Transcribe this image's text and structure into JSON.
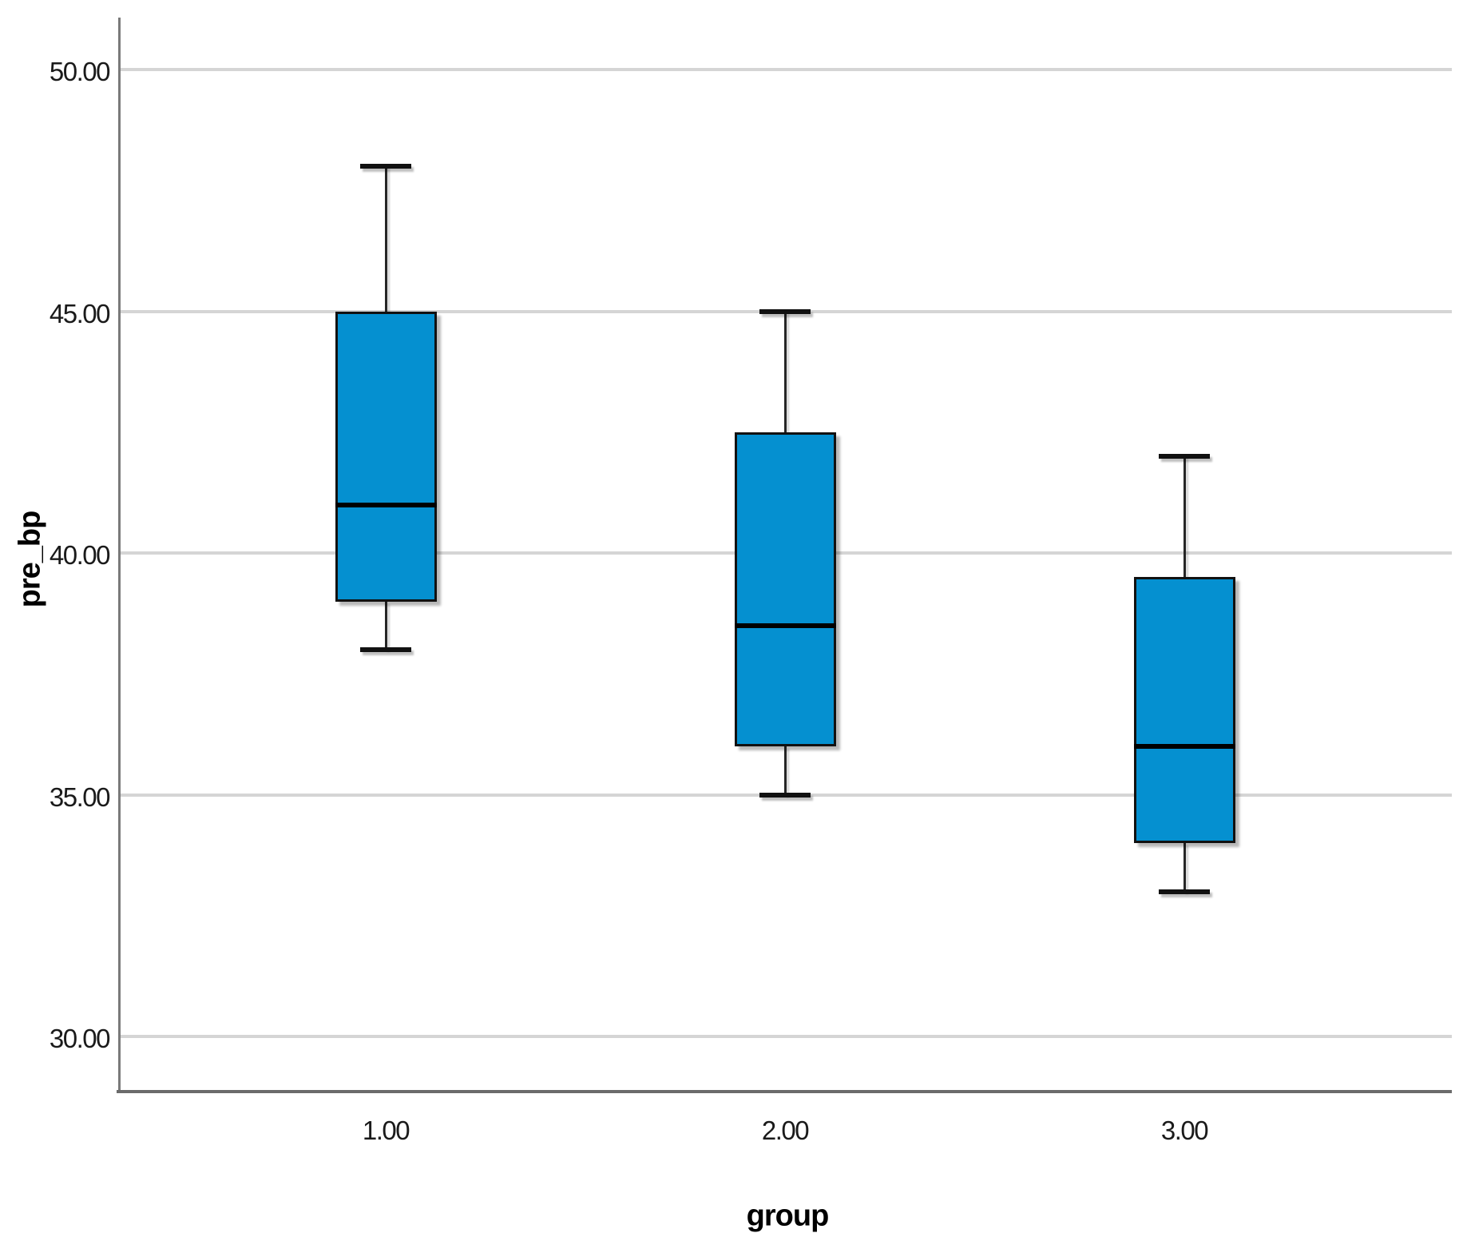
{
  "chart_data": {
    "type": "boxplot",
    "title": "",
    "xlabel": "group",
    "ylabel": "pre_bp",
    "categories": [
      "1.00",
      "2.00",
      "3.00"
    ],
    "y_axis": {
      "tick_labels": [
        "50.00",
        "45.00",
        "40.00",
        "35.00",
        "30.00"
      ],
      "tick_values": [
        50,
        45,
        40,
        35,
        30
      ],
      "range_shown": [
        28.9,
        51.1
      ]
    },
    "grid": "horizontal",
    "legend": "none",
    "colors": {
      "box_fill": "#0590d0",
      "box_border": "#111111",
      "median": "#000000",
      "whisker": "#262626",
      "gridline": "#d5d5d5",
      "axis_line": "#7a7a7a",
      "text": "#1a1a1a"
    },
    "series": [
      {
        "category": "1.00",
        "whisker_low": 38,
        "q1": 39,
        "median": 41,
        "q3": 45,
        "whisker_high": 48
      },
      {
        "category": "2.00",
        "whisker_low": 35,
        "q1": 36,
        "median": 38.5,
        "q3": 42.5,
        "whisker_high": 45
      },
      {
        "category": "3.00",
        "whisker_low": 33,
        "q1": 34,
        "median": 36,
        "q3": 39.5,
        "whisker_high": 42
      }
    ]
  }
}
